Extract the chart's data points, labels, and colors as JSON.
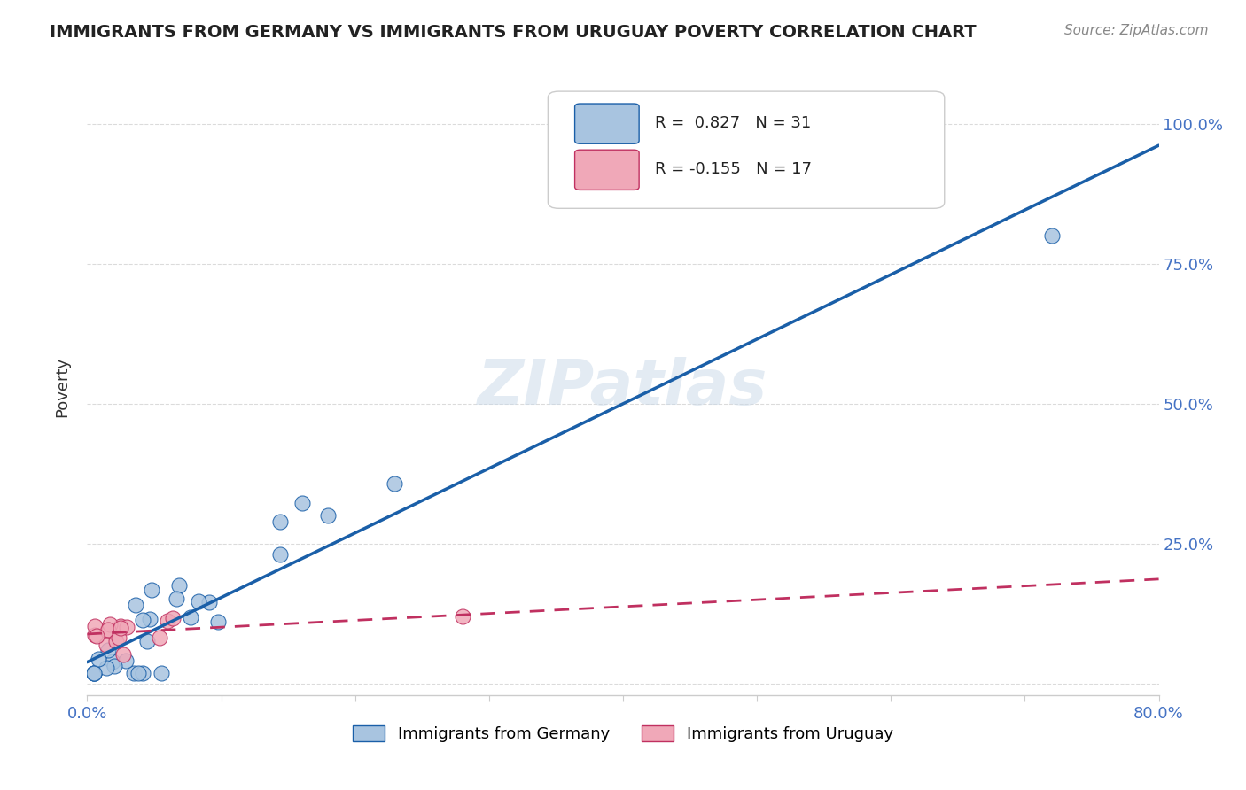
{
  "title": "IMMIGRANTS FROM GERMANY VS IMMIGRANTS FROM URUGUAY POVERTY CORRELATION CHART",
  "source_text": "Source: ZipAtlas.com",
  "xlabel": "",
  "ylabel": "Poverty",
  "xlim": [
    0.0,
    0.8
  ],
  "ylim": [
    -0.02,
    1.08
  ],
  "yticks": [
    0.0,
    0.25,
    0.5,
    0.75,
    1.0
  ],
  "ytick_labels": [
    "",
    "25.0%",
    "50.0%",
    "75.0%",
    "100.0%"
  ],
  "xticks": [
    0.0,
    0.1,
    0.2,
    0.3,
    0.4,
    0.5,
    0.6,
    0.7,
    0.8
  ],
  "watermark": "ZIPatlas",
  "germany_R": 0.827,
  "germany_N": 31,
  "uruguay_R": -0.155,
  "uruguay_N": 17,
  "germany_color": "#a8c4e0",
  "germany_line_color": "#1a5fa8",
  "uruguay_color": "#f0a8b8",
  "uruguay_line_color": "#c03060",
  "background_color": "#ffffff",
  "grid_color": "#cccccc"
}
